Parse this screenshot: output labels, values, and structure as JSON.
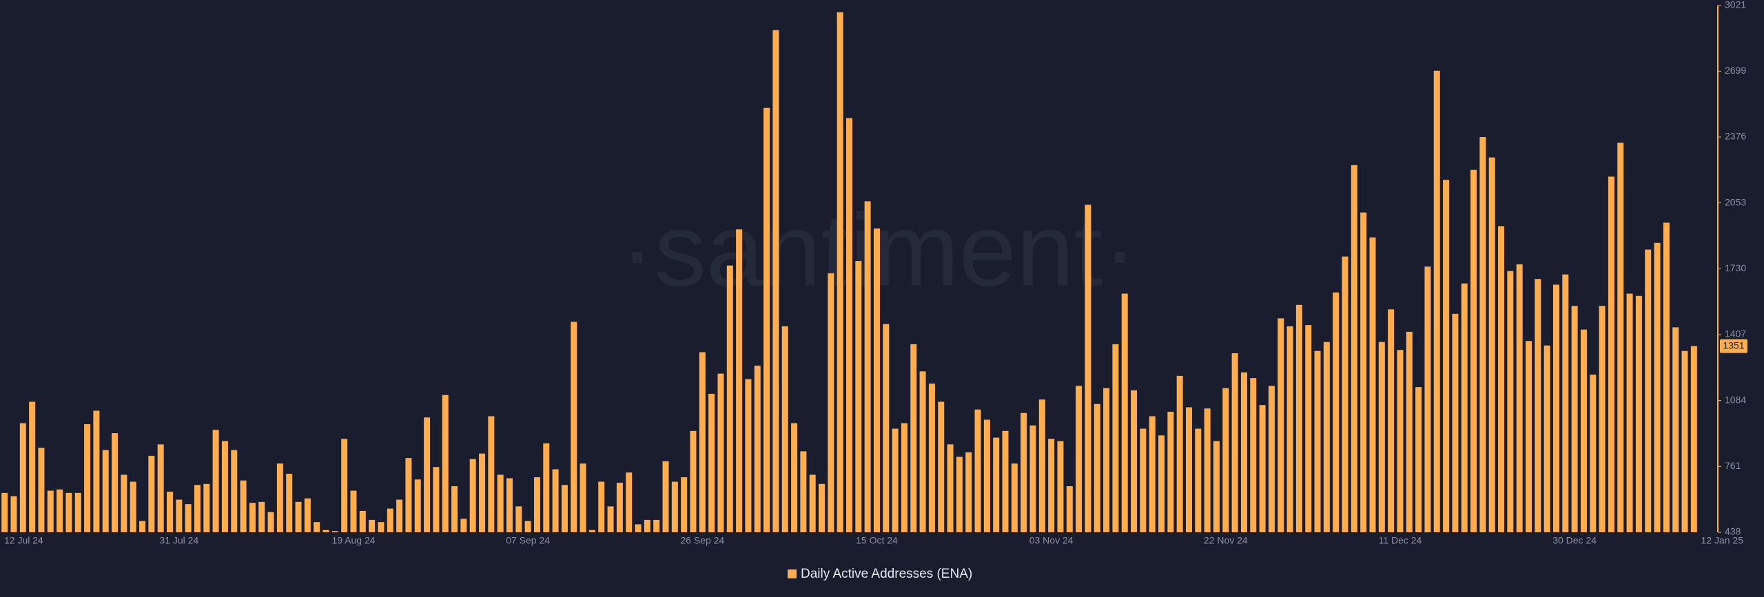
{
  "chart_data": {
    "type": "bar",
    "watermark": "·santiment·",
    "categories": [
      "12 Jul 24",
      null,
      null,
      null,
      null,
      null,
      null,
      null,
      null,
      null,
      null,
      null,
      null,
      null,
      null,
      null,
      null,
      null,
      null,
      "31 Jul 24",
      null,
      null,
      null,
      null,
      null,
      null,
      null,
      null,
      null,
      null,
      null,
      null,
      null,
      null,
      null,
      null,
      null,
      null,
      "19 Aug 24",
      null,
      null,
      null,
      null,
      null,
      null,
      null,
      null,
      null,
      null,
      null,
      null,
      null,
      null,
      null,
      null,
      null,
      null,
      "07 Sep 24",
      null,
      null,
      null,
      null,
      null,
      null,
      null,
      null,
      null,
      null,
      null,
      null,
      null,
      null,
      null,
      null,
      null,
      null,
      "26 Sep 24",
      null,
      null,
      null,
      null,
      null,
      null,
      null,
      null,
      null,
      null,
      null,
      null,
      null,
      null,
      null,
      null,
      null,
      null,
      "15 Oct 24",
      null,
      null,
      null,
      null,
      null,
      null,
      null,
      null,
      null,
      null,
      null,
      null,
      null,
      null,
      null,
      null,
      null,
      null,
      "03 Nov 24",
      null,
      null,
      null,
      null,
      null,
      null,
      null,
      null,
      null,
      null,
      null,
      null,
      null,
      null,
      null,
      null,
      null,
      null,
      "22 Nov 24",
      null,
      null,
      null,
      null,
      null,
      null,
      null,
      null,
      null,
      null,
      null,
      null,
      null,
      null,
      null,
      null,
      null,
      null,
      "11 Dec 24",
      null,
      null,
      null,
      null,
      null,
      null,
      null,
      null,
      null,
      null,
      null,
      null,
      null,
      null,
      null,
      null,
      null,
      null,
      "30 Dec 24",
      null,
      null,
      null,
      null,
      null,
      null,
      null,
      null,
      null,
      null,
      null,
      null,
      "12 Jan 25"
    ],
    "series": [
      {
        "name": "Daily Active Addresses (ENA)",
        "color": "#ffad4d",
        "values": [
          631,
          615,
          973,
          1078,
          852,
          642,
          648,
          631,
          631,
          968,
          1034,
          841,
          924,
          720,
          686,
          493,
          813,
          869,
          637,
          598,
          576,
          670,
          675,
          940,
          885,
          841,
          692,
          582,
          587,
          537,
          775,
          725,
          587,
          604,
          488,
          449,
          444,
          896,
          642,
          543,
          499,
          488,
          554,
          598,
          802,
          697,
          1001,
          758,
          1111,
          664,
          504,
          797,
          824,
          1007,
          720,
          703,
          565,
          493,
          708,
          874,
          747,
          670,
          1470,
          775,
          449,
          686,
          565,
          681,
          731,
          477,
          499,
          499,
          786,
          686,
          708,
          935,
          1321,
          1117,
          1216,
          1746,
          1923,
          1189,
          1255,
          2519,
          2900,
          1448,
          973,
          835,
          720,
          675,
          1708,
          2988,
          2469,
          1768,
          2061,
          1928,
          1459,
          946,
          973,
          1360,
          1227,
          1167,
          1078,
          869,
          808,
          830,
          1040,
          990,
          902,
          935,
          775,
          1023,
          962,
          1089,
          896,
          885,
          664,
          1156,
          2044,
          1067,
          1145,
          1360,
          1608,
          1134,
          946,
          1007,
          913,
          1029,
          1205,
          1051,
          946,
          1045,
          885,
          1145,
          1316,
          1222,
          1194,
          1062,
          1156,
          1487,
          1448,
          1553,
          1454,
          1327,
          1371,
          1614,
          1790,
          2238,
          2006,
          1884,
          1371,
          1531,
          1332,
          1421,
          1150,
          1741,
          2701,
          2166,
          1509,
          1658,
          2215,
          2376,
          2276,
          1939,
          1719,
          1752,
          1376,
          1680,
          1354,
          1652,
          1702,
          1548,
          1432,
          1211,
          1548,
          2182,
          2348,
          1608,
          1597,
          1824,
          1857,
          1956,
          1443,
          1327,
          1351
        ]
      }
    ],
    "ylim": [
      438,
      3021
    ],
    "yticks": [
      438,
      761,
      1084,
      1407,
      1730,
      2053,
      2376,
      2699,
      3021
    ],
    "grid": false
  }
}
